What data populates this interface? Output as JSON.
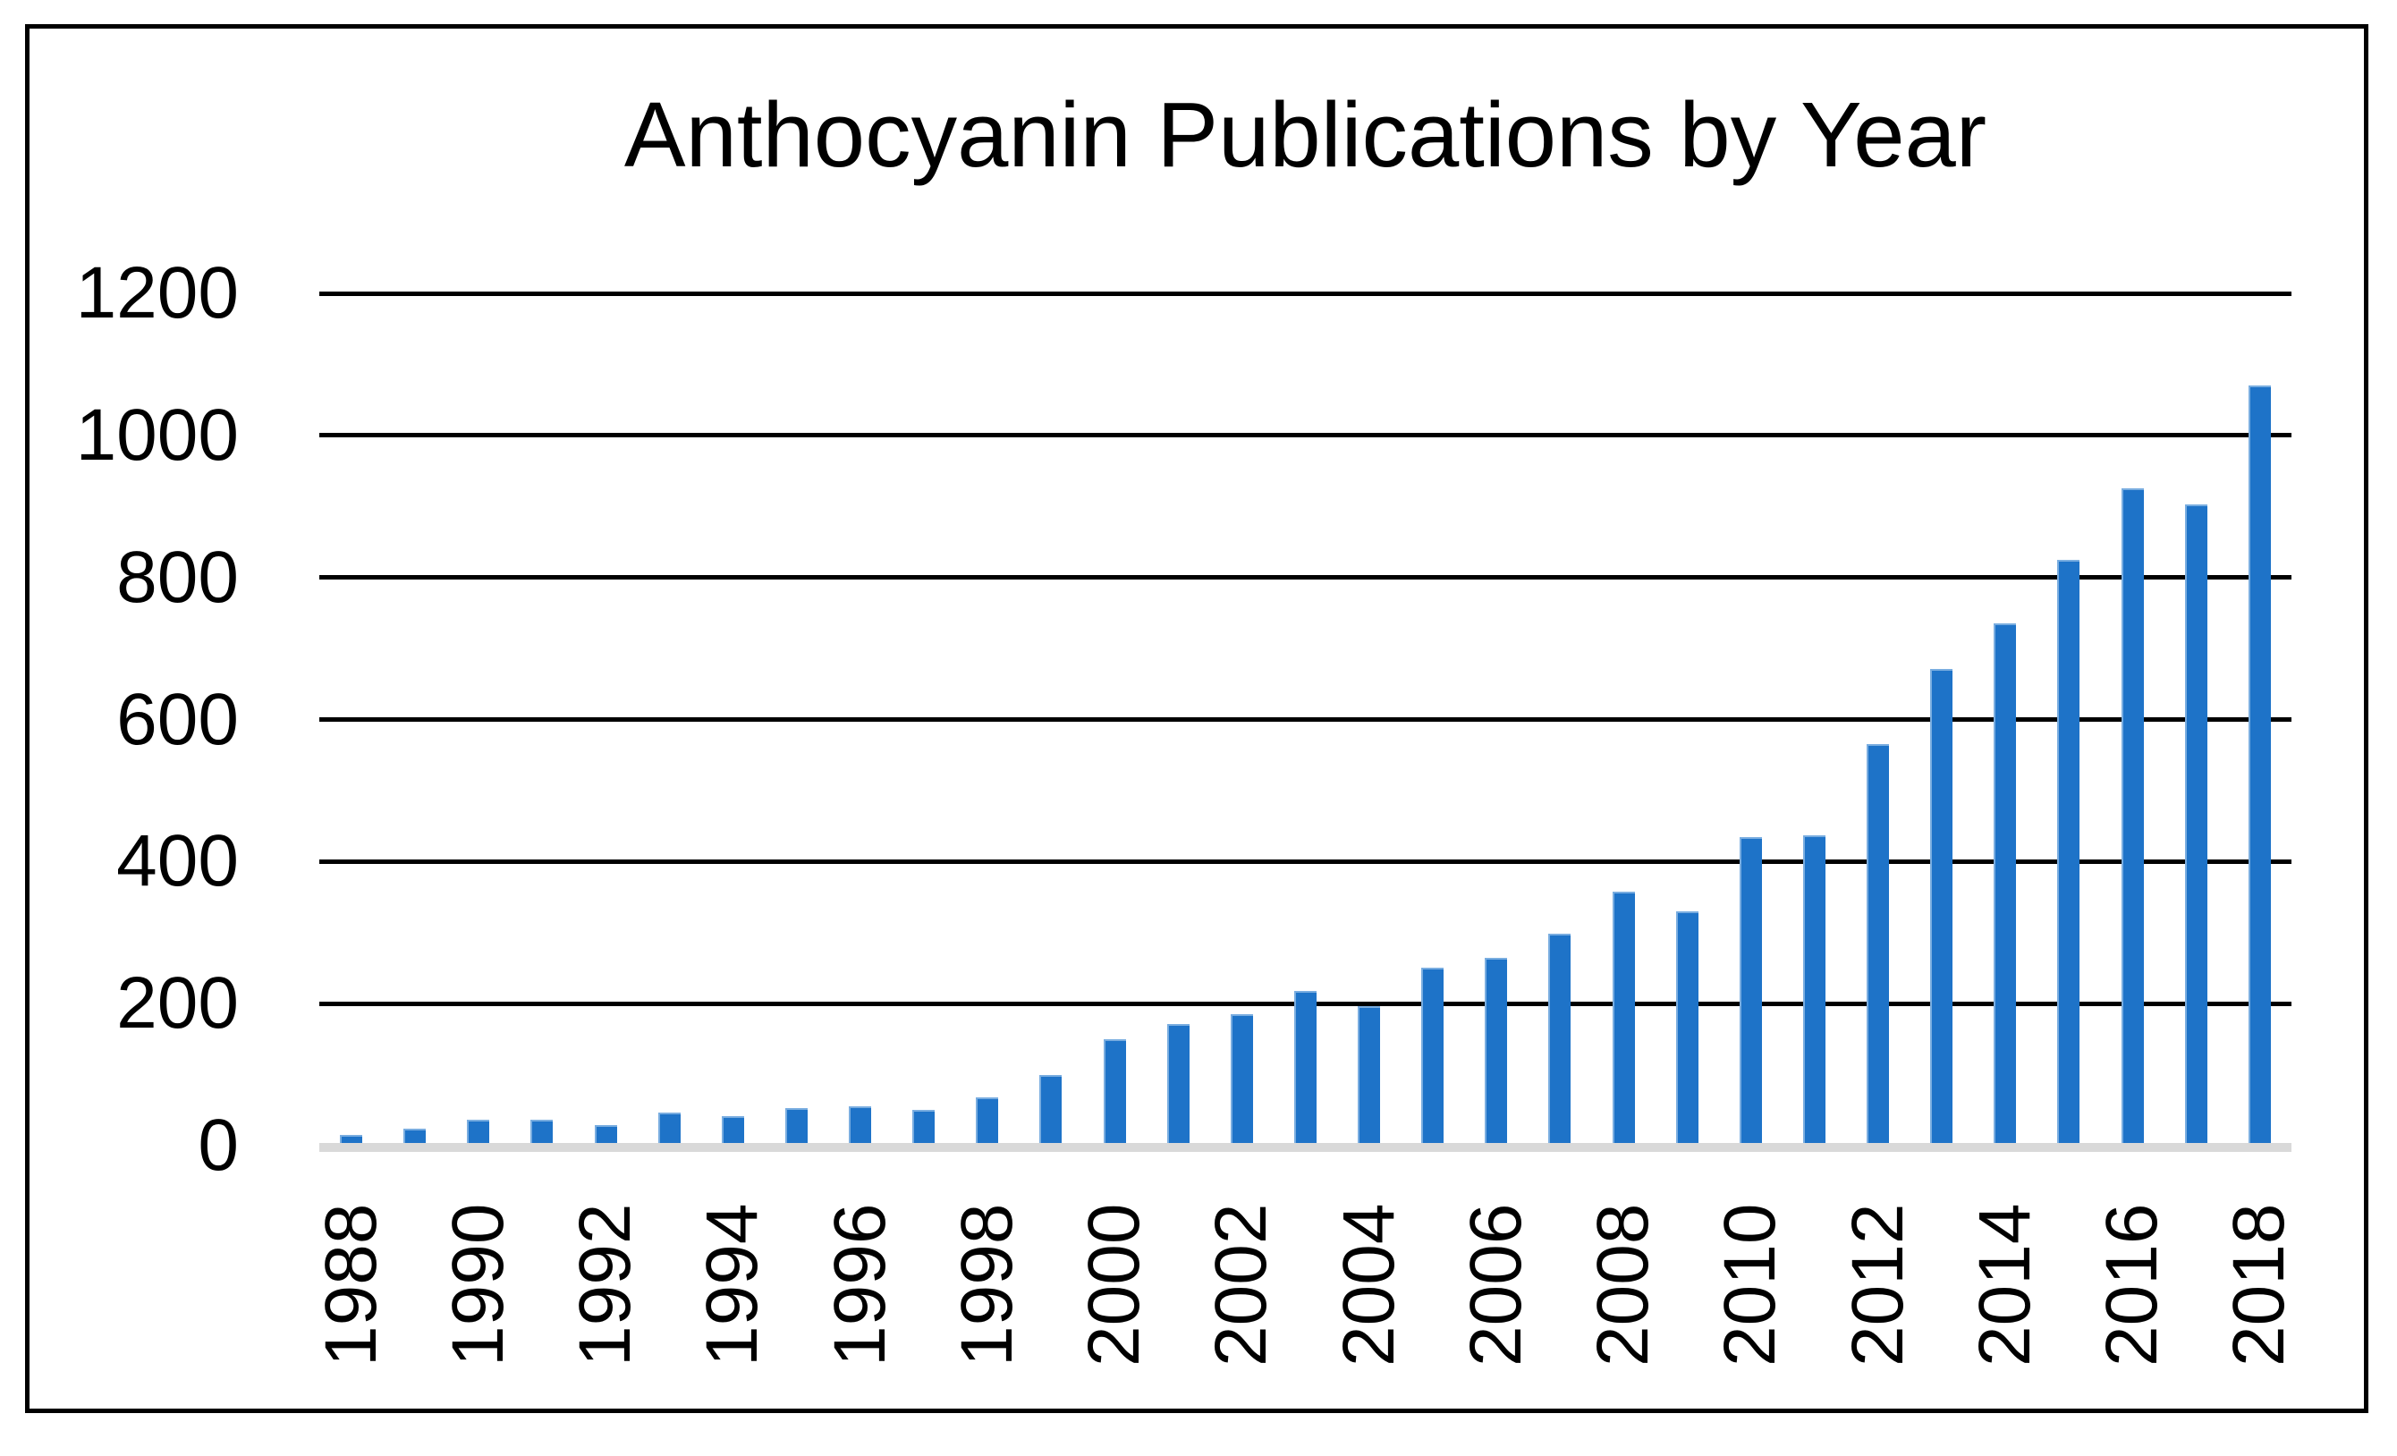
{
  "chart_data": {
    "type": "bar",
    "title": "Anthocyanin Publications by Year",
    "xlabel": "",
    "ylabel": "",
    "categories": [
      "1988",
      "1989",
      "1990",
      "1991",
      "1992",
      "1993",
      "1994",
      "1995",
      "1996",
      "1997",
      "1998",
      "1999",
      "2000",
      "2001",
      "2002",
      "2003",
      "2004",
      "2005",
      "2006",
      "2007",
      "2008",
      "2009",
      "2010",
      "2011",
      "2012",
      "2013",
      "2014",
      "2015",
      "2016",
      "2017",
      "2018"
    ],
    "values": [
      15,
      24,
      36,
      36,
      29,
      47,
      41,
      53,
      56,
      50,
      68,
      100,
      150,
      171,
      185,
      218,
      196,
      250,
      265,
      299,
      358,
      330,
      434,
      437,
      566,
      671,
      736,
      825,
      925,
      903,
      1070
    ],
    "ylim": [
      0,
      1200
    ],
    "ytick_labels": [
      "0",
      "200",
      "400",
      "600",
      "800",
      "1000",
      "1200"
    ],
    "ytick_values": [
      0,
      200,
      400,
      600,
      800,
      1000,
      1200
    ],
    "xtick_labels_shown": [
      "1988",
      "1990",
      "1992",
      "1994",
      "1996",
      "1998",
      "2000",
      "2002",
      "2004",
      "2006",
      "2008",
      "2010",
      "2012",
      "2014",
      "2016",
      "2018"
    ],
    "grid": "horizontal-on",
    "legend": "none",
    "bar_color": "#1e73c8",
    "bar_edge_color": "#79ade0",
    "gridline_color": "#000000",
    "axis_line_color": "#d9d9d9",
    "frame_color": "#000000",
    "text_color": "#000000",
    "background_color": "#ffffff"
  }
}
